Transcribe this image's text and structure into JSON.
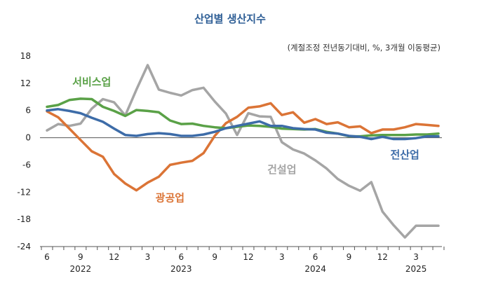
{
  "chart_data": {
    "type": "line",
    "title": "산업별 생산지수",
    "subtitle": "(계절조정 전년동기대비, %, 3개월 이동평균)",
    "ylim": [
      -24,
      18
    ],
    "yticks": [
      18,
      12,
      6,
      0,
      -6,
      -12,
      -18,
      -24
    ],
    "x": [
      "2022-06",
      "2022-07",
      "2022-08",
      "2022-09",
      "2022-10",
      "2022-11",
      "2022-12",
      "2023-01",
      "2023-02",
      "2023-03",
      "2023-04",
      "2023-05",
      "2023-06",
      "2023-07",
      "2023-08",
      "2023-09",
      "2023-10",
      "2023-11",
      "2023-12",
      "2024-01",
      "2024-02",
      "2024-03",
      "2024-04",
      "2024-05",
      "2024-06",
      "2024-07",
      "2024-08",
      "2024-09",
      "2024-10",
      "2024-11",
      "2024-12",
      "2025-01",
      "2025-02",
      "2025-03",
      "2025-04",
      "2025-05"
    ],
    "x_tick_labels": [
      "6",
      "9",
      "12",
      "3",
      "6",
      "9",
      "12",
      "3",
      "6",
      "9",
      "12",
      "3"
    ],
    "x_tick_months": [
      "2022-06",
      "2022-09",
      "2022-12",
      "2023-03",
      "2023-06",
      "2023-09",
      "2023-12",
      "2024-03",
      "2024-06",
      "2024-09",
      "2024-12",
      "2025-03"
    ],
    "year_labels": [
      {
        "label": "2022",
        "month": "2022-09"
      },
      {
        "label": "2023",
        "month": "2023-06"
      },
      {
        "label": "2024",
        "month": "2024-06"
      },
      {
        "label": "2025",
        "month": "2025-03"
      }
    ],
    "grid": false,
    "series": [
      {
        "name": "건설업",
        "color": "#a5a5a5",
        "label_anchor_month": "2024-03",
        "label_value": -7,
        "values": [
          1.6,
          3.0,
          2.6,
          3.1,
          6.4,
          8.5,
          7.8,
          4.9,
          10.6,
          16.0,
          10.6,
          9.9,
          9.3,
          10.5,
          11.0,
          8.0,
          5.3,
          0.6,
          5.4,
          4.7,
          4.6,
          -1.0,
          -2.6,
          -3.5,
          -5.0,
          -6.8,
          -9.1,
          -10.6,
          -11.7,
          -9.8,
          -16.3,
          -19.3,
          -22.0,
          -19.4,
          -19.4,
          -19.4
        ]
      },
      {
        "name": "광공업",
        "color": "#db7436",
        "label_anchor_month": "2023-05",
        "label_value": -13.3,
        "values": [
          5.8,
          4.5,
          2.0,
          -0.5,
          -3.0,
          -4.2,
          -8.0,
          -10.1,
          -11.6,
          -9.9,
          -8.6,
          -6.0,
          -5.5,
          -5.1,
          -3.4,
          0.4,
          3.2,
          4.6,
          6.6,
          6.9,
          7.6,
          5.0,
          5.6,
          3.3,
          4.1,
          3.0,
          3.4,
          2.3,
          2.5,
          1.0,
          1.8,
          1.8,
          2.3,
          3.0,
          2.8,
          2.6
        ]
      },
      {
        "name": "서비스업",
        "color": "#5aa147",
        "label_anchor_month": "2022-10",
        "label_value": 12.3,
        "values": [
          6.8,
          7.2,
          8.3,
          8.6,
          8.5,
          6.8,
          5.9,
          4.8,
          6.1,
          5.9,
          5.6,
          3.8,
          3.0,
          3.1,
          2.6,
          2.3,
          2.1,
          2.4,
          2.7,
          2.6,
          2.4,
          2.0,
          1.9,
          1.8,
          1.9,
          1.3,
          0.9,
          0.3,
          0.3,
          0.5,
          0.6,
          0.6,
          0.6,
          0.7,
          0.7,
          0.9
        ]
      },
      {
        "name": "전산업",
        "color": "#3d6ca8",
        "label_anchor_month": "2025-02",
        "label_value": -3.8,
        "values": [
          6.0,
          6.3,
          5.9,
          5.4,
          4.4,
          3.5,
          2.0,
          0.6,
          0.4,
          0.8,
          1.0,
          0.8,
          0.4,
          0.4,
          0.7,
          1.3,
          2.1,
          2.6,
          3.1,
          3.6,
          2.6,
          2.6,
          2.1,
          1.9,
          1.8,
          1.1,
          0.9,
          0.4,
          0.2,
          -0.3,
          0.2,
          -0.3,
          -0.3,
          -0.1,
          0.3,
          0.3
        ]
      }
    ]
  }
}
